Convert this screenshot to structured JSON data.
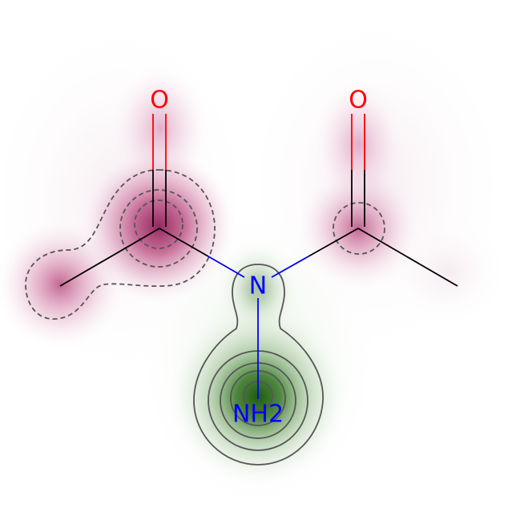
{
  "molecule": {
    "atoms": [
      {
        "id": "o1",
        "symbol": "O",
        "color": "#ff0000"
      },
      {
        "id": "o2",
        "symbol": "O",
        "color": "#ff0000"
      },
      {
        "id": "n",
        "symbol": "N",
        "color": "#0000ff"
      },
      {
        "id": "nh2",
        "symbol": "NH2",
        "color": "#0000ff"
      }
    ]
  },
  "colors": {
    "negative_contribution": "#b0356f",
    "positive_contribution": "#2e6e1e",
    "carbon_bond": "#000000",
    "nitrogen_bond": "#0000ff",
    "oxygen_bond": "#ff0000",
    "contour_line": "#555555"
  }
}
